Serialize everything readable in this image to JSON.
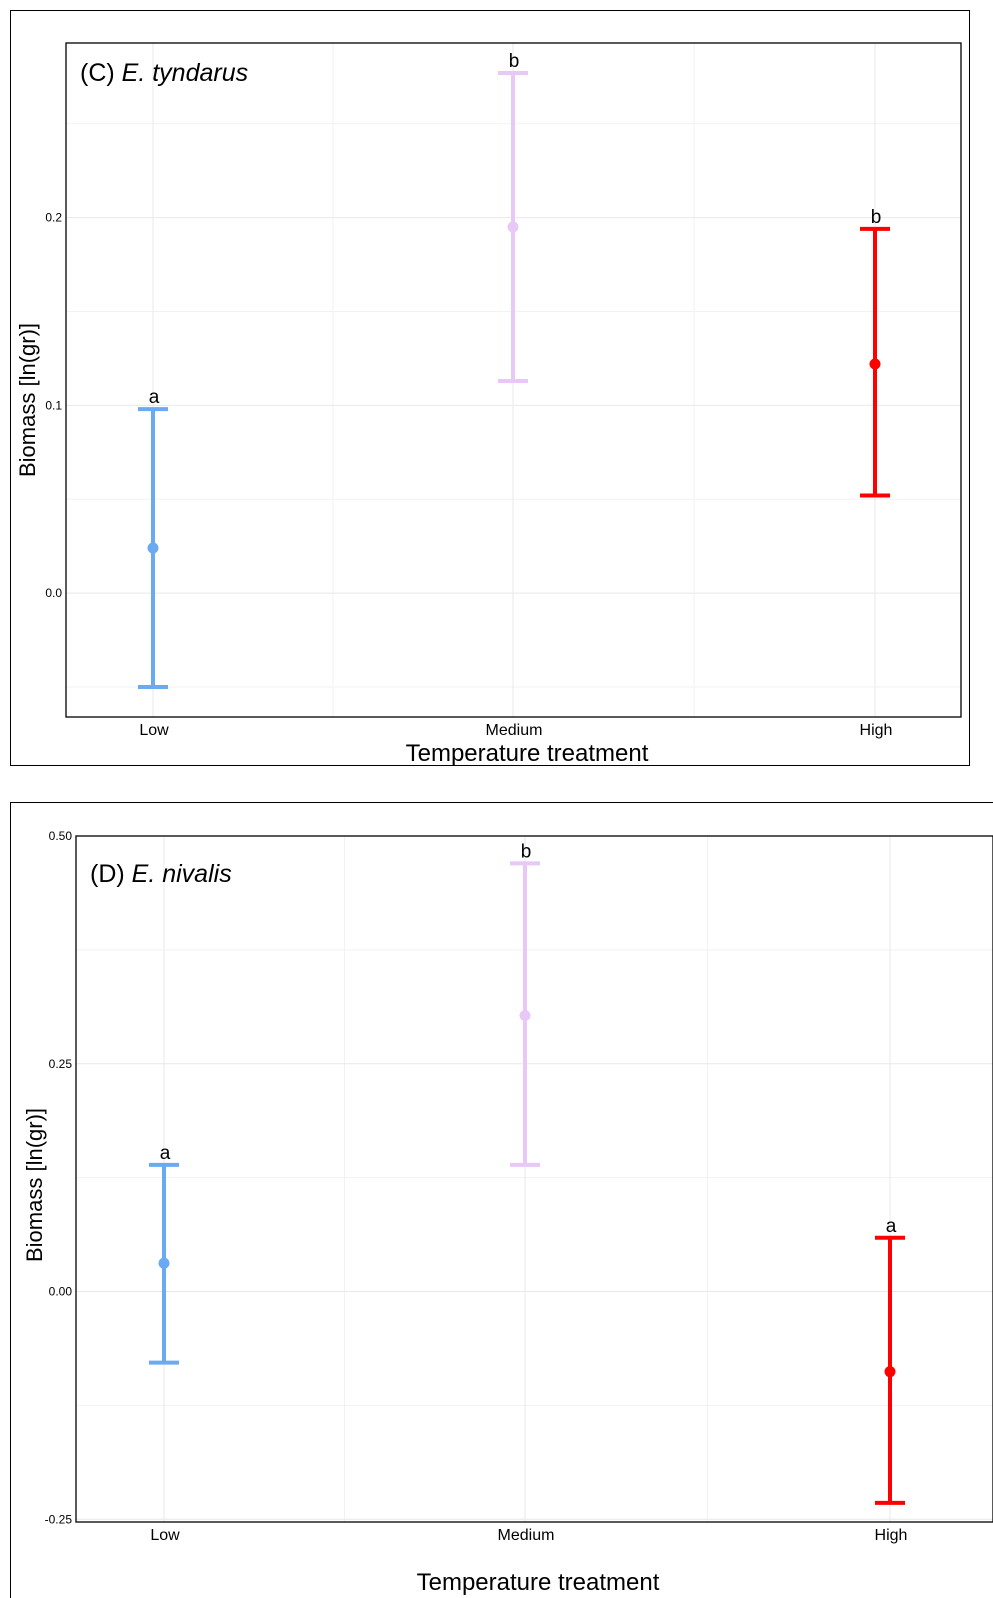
{
  "chart_data": [
    {
      "type": "errorbar",
      "title_prefix": "(C) ",
      "title_species": "E. tyndarus",
      "xlabel": "Temperature treatment",
      "ylabel": "Biomass [ln(gr)]",
      "categories": [
        "Low",
        "Medium",
        "High"
      ],
      "colors": [
        "#6aaaf2",
        "#e8c8f6",
        "#ff0000"
      ],
      "means": [
        0.024,
        0.195,
        0.122
      ],
      "lower": [
        -0.05,
        0.113,
        0.052
      ],
      "upper": [
        0.098,
        0.277,
        0.194
      ],
      "letters": [
        "a",
        "b",
        "b"
      ],
      "ylim": [
        -0.066,
        0.293
      ],
      "yticks": [
        0.0,
        0.1,
        0.2
      ],
      "ytick_labels": [
        "0.0",
        "0.1",
        "0.2"
      ],
      "grid": true
    },
    {
      "type": "errorbar",
      "title_prefix": "(D) ",
      "title_species": "E. nivalis",
      "xlabel": "Temperature treatment",
      "ylabel": "Biomass [ln(gr)]",
      "categories": [
        "Low",
        "Medium",
        "High"
      ],
      "colors": [
        "#6aaaf2",
        "#e8c8f6",
        "#ff0000"
      ],
      "means": [
        0.031,
        0.303,
        -0.088
      ],
      "lower": [
        -0.078,
        0.139,
        -0.232
      ],
      "upper": [
        0.139,
        0.47,
        0.059
      ],
      "letters": [
        "a",
        "b",
        "a"
      ],
      "ylim": [
        -0.253,
        0.5
      ],
      "yticks": [
        -0.25,
        0.0,
        0.25,
        0.5
      ],
      "ytick_labels": [
        "-0.25",
        "0.00",
        "0.25",
        "0.50"
      ],
      "grid": true
    }
  ]
}
